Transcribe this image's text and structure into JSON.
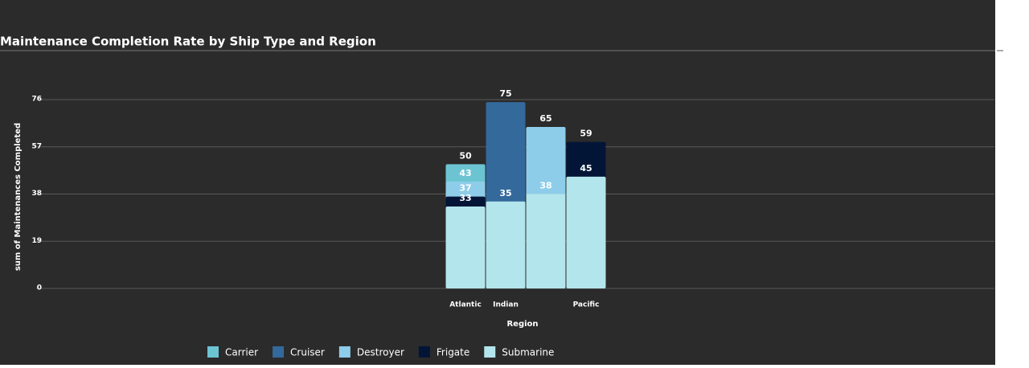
{
  "chart_data": {
    "type": "overlapped_bar",
    "title": "Maintenance Completion Rate by Ship Type and Region",
    "x_label": "Region",
    "y_label": "sum of Maintenances Completed",
    "categories": [
      "Atlantic",
      "Indian",
      null,
      "Pacific"
    ],
    "series": [
      {
        "name": "Carrier",
        "color": "#6cc4d3",
        "values": [
          50,
          null,
          null,
          null
        ]
      },
      {
        "name": "Cruiser",
        "color": "#34699b",
        "values": [
          null,
          75,
          null,
          null
        ]
      },
      {
        "name": "Destroyer",
        "color": "#8ecde9",
        "values": [
          43,
          null,
          65,
          null
        ]
      },
      {
        "name": "Frigate",
        "color": "#031537",
        "values": [
          37,
          null,
          null,
          59
        ]
      },
      {
        "name": "Submarine",
        "color": "#b3e5ec",
        "values": [
          33,
          35,
          38,
          45
        ]
      }
    ],
    "ylim": [
      0,
      76
    ],
    "yticks": [
      0,
      19,
      38,
      57,
      76
    ],
    "grid": true
  }
}
